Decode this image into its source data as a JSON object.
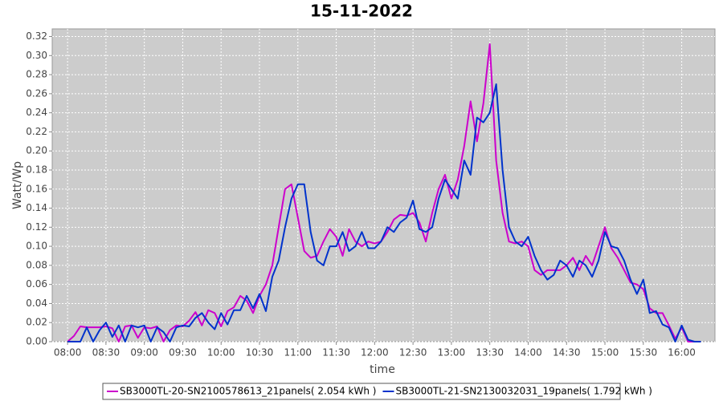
{
  "chart_data": {
    "type": "line",
    "title": "15-11-2022",
    "x_label": "time",
    "y_label": "Watt/Wp",
    "x": [
      "08:00",
      "08:05",
      "08:10",
      "08:15",
      "08:20",
      "08:25",
      "08:30",
      "08:35",
      "08:40",
      "08:45",
      "08:50",
      "08:55",
      "09:00",
      "09:05",
      "09:10",
      "09:15",
      "09:20",
      "09:25",
      "09:30",
      "09:35",
      "09:40",
      "09:45",
      "09:50",
      "09:55",
      "10:00",
      "10:05",
      "10:10",
      "10:15",
      "10:20",
      "10:25",
      "10:30",
      "10:35",
      "10:40",
      "10:45",
      "10:50",
      "10:55",
      "11:00",
      "11:05",
      "11:10",
      "11:15",
      "11:20",
      "11:25",
      "11:30",
      "11:35",
      "11:40",
      "11:45",
      "11:50",
      "11:55",
      "12:00",
      "12:05",
      "12:10",
      "12:15",
      "12:20",
      "12:25",
      "12:30",
      "12:35",
      "12:40",
      "12:45",
      "12:50",
      "12:55",
      "13:00",
      "13:05",
      "13:10",
      "13:15",
      "13:20",
      "13:25",
      "13:30",
      "13:35",
      "13:40",
      "13:45",
      "13:50",
      "13:55",
      "14:00",
      "14:05",
      "14:10",
      "14:15",
      "14:20",
      "14:25",
      "14:30",
      "14:35",
      "14:40",
      "14:45",
      "14:50",
      "14:55",
      "15:00",
      "15:05",
      "15:10",
      "15:15",
      "15:20",
      "15:25",
      "15:30",
      "15:35",
      "15:40",
      "15:45",
      "15:50",
      "15:55",
      "16:00",
      "16:05",
      "16:10",
      "16:15"
    ],
    "series": [
      {
        "name": "SB3000TL-20-SN2100578613_21panels( 2.054 kWh )",
        "color": "#cc00cc",
        "values": [
          0.0,
          0.006,
          0.016,
          0.015,
          0.015,
          0.015,
          0.016,
          0.014,
          0.0,
          0.016,
          0.017,
          0.004,
          0.015,
          0.014,
          0.016,
          0.0,
          0.012,
          0.017,
          0.016,
          0.022,
          0.031,
          0.017,
          0.033,
          0.03,
          0.016,
          0.032,
          0.036,
          0.048,
          0.043,
          0.03,
          0.048,
          0.06,
          0.08,
          0.12,
          0.16,
          0.165,
          0.13,
          0.095,
          0.088,
          0.09,
          0.105,
          0.118,
          0.11,
          0.09,
          0.118,
          0.105,
          0.1,
          0.105,
          0.103,
          0.105,
          0.115,
          0.128,
          0.133,
          0.132,
          0.135,
          0.125,
          0.105,
          0.135,
          0.16,
          0.175,
          0.15,
          0.17,
          0.205,
          0.252,
          0.21,
          0.25,
          0.312,
          0.19,
          0.135,
          0.105,
          0.103,
          0.105,
          0.1,
          0.075,
          0.07,
          0.075,
          0.075,
          0.075,
          0.08,
          0.088,
          0.075,
          0.09,
          0.08,
          0.1,
          0.12,
          0.098,
          0.088,
          0.075,
          0.062,
          0.06,
          0.055,
          0.035,
          0.03,
          0.03,
          0.017,
          0.003,
          0.015,
          0.0,
          0.0,
          0.0
        ]
      },
      {
        "name": "SB3000TL-21-SN2130032031_19panels( 1.792 kWh )",
        "color": "#0033cc",
        "values": [
          0.0,
          0.0,
          0.0,
          0.015,
          0.0,
          0.012,
          0.02,
          0.005,
          0.017,
          0.0,
          0.017,
          0.015,
          0.017,
          0.0,
          0.015,
          0.01,
          0.0,
          0.015,
          0.017,
          0.016,
          0.025,
          0.03,
          0.02,
          0.013,
          0.03,
          0.018,
          0.033,
          0.033,
          0.048,
          0.035,
          0.05,
          0.032,
          0.068,
          0.085,
          0.12,
          0.15,
          0.165,
          0.165,
          0.115,
          0.085,
          0.08,
          0.1,
          0.1,
          0.115,
          0.095,
          0.1,
          0.115,
          0.098,
          0.098,
          0.105,
          0.12,
          0.115,
          0.125,
          0.13,
          0.148,
          0.118,
          0.115,
          0.12,
          0.15,
          0.17,
          0.16,
          0.15,
          0.19,
          0.175,
          0.235,
          0.23,
          0.24,
          0.27,
          0.18,
          0.12,
          0.105,
          0.1,
          0.11,
          0.09,
          0.075,
          0.065,
          0.07,
          0.085,
          0.08,
          0.068,
          0.085,
          0.08,
          0.068,
          0.085,
          0.115,
          0.1,
          0.098,
          0.085,
          0.065,
          0.05,
          0.065,
          0.03,
          0.032,
          0.018,
          0.015,
          0.0,
          0.017,
          0.002,
          0.0,
          0.0
        ]
      }
    ],
    "xlim": [
      "07:48",
      "16:26"
    ],
    "xticks": [
      "08:00",
      "08:30",
      "09:00",
      "09:30",
      "10:00",
      "10:30",
      "11:00",
      "11:30",
      "12:00",
      "12:30",
      "13:00",
      "13:30",
      "14:00",
      "14:30",
      "15:00",
      "15:30",
      "16:00"
    ],
    "ylim": [
      0,
      0.328
    ],
    "yticks": [
      {
        "value": 0,
        "label": "0.00"
      },
      {
        "value": 0.02,
        "label": "0.02"
      },
      {
        "value": 0.04,
        "label": "0.04"
      },
      {
        "value": 0.06,
        "label": "0.06"
      },
      {
        "value": 0.08,
        "label": "0.08"
      },
      {
        "value": 0.1,
        "label": "0.10"
      },
      {
        "value": 0.12,
        "label": "0.12"
      },
      {
        "value": 0.14,
        "label": "0.14"
      },
      {
        "value": 0.16,
        "label": "0.16"
      },
      {
        "value": 0.18,
        "label": "0.18"
      },
      {
        "value": 0.2,
        "label": "0.20"
      },
      {
        "value": 0.22,
        "label": "0.22"
      },
      {
        "value": 0.24,
        "label": "0.24"
      },
      {
        "value": 0.26,
        "label": "0.26"
      },
      {
        "value": 0.28,
        "label": "0.28"
      },
      {
        "value": 0.3,
        "label": "0.30"
      },
      {
        "value": 0.32,
        "label": "0.32"
      }
    ],
    "grid": true,
    "legend": "bottom"
  }
}
